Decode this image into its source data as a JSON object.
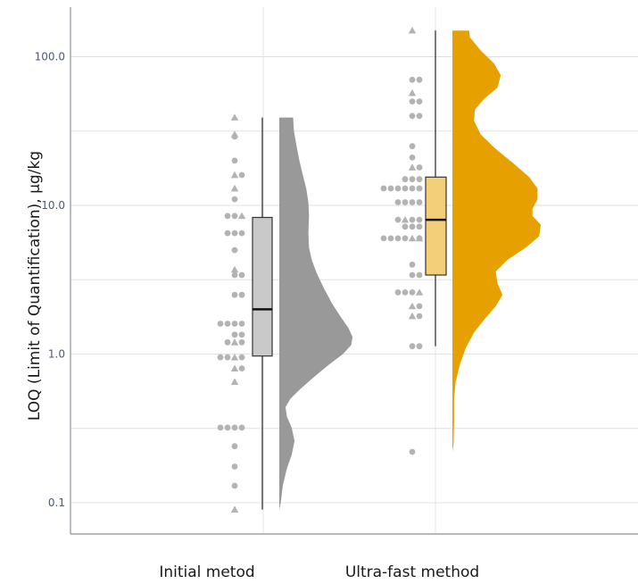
{
  "chart_data": {
    "type": "raincloud",
    "title": "",
    "ylabel": "LOQ (Limit of Quantification), µg/kg",
    "xlabel": "",
    "y_scale": "log10",
    "ylim": [
      0.085,
      230
    ],
    "y_ticks": [
      {
        "value": 0.1,
        "label": "0.1"
      },
      {
        "value": 1,
        "label": "1.0"
      },
      {
        "value": 10,
        "label": "10.0"
      },
      {
        "value": 100,
        "label": "100.0"
      }
    ],
    "grid": true,
    "categories": [
      "Initial metod",
      "Ultra-fast method"
    ],
    "series": [
      {
        "box_color": "#c9c9c9",
        "density_color": "#999999",
        "box": {
          "whisker_low": 0.09,
          "q1": 0.97,
          "median": 2.0,
          "q3": 8.3,
          "whisker_high": 39
        },
        "density_max": 39,
        "density_min": 0.09,
        "density": [
          [
            39,
            1.0
          ],
          [
            32,
            1.05
          ],
          [
            25,
            1.25
          ],
          [
            20,
            1.45
          ],
          [
            16,
            1.7
          ],
          [
            13,
            1.95
          ],
          [
            10.5,
            2.1
          ],
          [
            8.5,
            2.15
          ],
          [
            6.5,
            2.1
          ],
          [
            5.2,
            2.15
          ],
          [
            4.3,
            2.35
          ],
          [
            3.5,
            2.7
          ],
          [
            2.8,
            3.2
          ],
          [
            2.2,
            3.8
          ],
          [
            1.8,
            4.4
          ],
          [
            1.5,
            5.0
          ],
          [
            1.3,
            5.3
          ],
          [
            1.15,
            5.2
          ],
          [
            1.0,
            4.6
          ],
          [
            0.85,
            3.6
          ],
          [
            0.7,
            2.5
          ],
          [
            0.58,
            1.5
          ],
          [
            0.5,
            0.8
          ],
          [
            0.44,
            0.45
          ],
          [
            0.38,
            0.55
          ],
          [
            0.32,
            0.9
          ],
          [
            0.26,
            1.1
          ],
          [
            0.21,
            0.9
          ],
          [
            0.17,
            0.55
          ],
          [
            0.13,
            0.25
          ],
          [
            0.1,
            0.1
          ],
          [
            0.09,
            0.0
          ]
        ],
        "points": [
          {
            "v": 39,
            "s": "t"
          },
          {
            "v": 30,
            "s": "t"
          },
          {
            "v": 29,
            "s": "c"
          },
          {
            "v": 16,
            "s": "c"
          },
          {
            "v": 16,
            "s": "t"
          },
          {
            "v": 20,
            "s": "c"
          },
          {
            "v": 13,
            "s": "t"
          },
          {
            "v": 11,
            "s": "c"
          },
          {
            "v": 8.5,
            "s": "t"
          },
          {
            "v": 8.5,
            "s": "c"
          },
          {
            "v": 8.5,
            "s": "c"
          },
          {
            "v": 6.5,
            "s": "c"
          },
          {
            "v": 6.5,
            "s": "c"
          },
          {
            "v": 6.5,
            "s": "c"
          },
          {
            "v": 5.0,
            "s": "c"
          },
          {
            "v": 3.7,
            "s": "t"
          },
          {
            "v": 3.4,
            "s": "c"
          },
          {
            "v": 3.4,
            "s": "c"
          },
          {
            "v": 2.5,
            "s": "c"
          },
          {
            "v": 2.5,
            "s": "c"
          },
          {
            "v": 1.6,
            "s": "c"
          },
          {
            "v": 1.6,
            "s": "c"
          },
          {
            "v": 1.6,
            "s": "c"
          },
          {
            "v": 1.6,
            "s": "c"
          },
          {
            "v": 1.35,
            "s": "c"
          },
          {
            "v": 1.35,
            "s": "c"
          },
          {
            "v": 1.2,
            "s": "c"
          },
          {
            "v": 1.2,
            "s": "t"
          },
          {
            "v": 1.2,
            "s": "c"
          },
          {
            "v": 0.95,
            "s": "c"
          },
          {
            "v": 0.95,
            "s": "t"
          },
          {
            "v": 0.95,
            "s": "c"
          },
          {
            "v": 0.95,
            "s": "c"
          },
          {
            "v": 0.8,
            "s": "c"
          },
          {
            "v": 0.8,
            "s": "t"
          },
          {
            "v": 0.65,
            "s": "t"
          },
          {
            "v": 0.32,
            "s": "c"
          },
          {
            "v": 0.32,
            "s": "c"
          },
          {
            "v": 0.32,
            "s": "c"
          },
          {
            "v": 0.32,
            "s": "c"
          },
          {
            "v": 0.24,
            "s": "c"
          },
          {
            "v": 0.175,
            "s": "c"
          },
          {
            "v": 0.13,
            "s": "c"
          },
          {
            "v": 0.09,
            "s": "t"
          }
        ]
      },
      {
        "box_color": "#f4cf7a",
        "density_color": "#e6a100",
        "box": {
          "whisker_low": 1.13,
          "q1": 3.4,
          "median": 8.0,
          "q3": 15.5,
          "whisker_high": 150
        },
        "density_max": 150,
        "density_min": 0.22,
        "density": [
          [
            150,
            1.0
          ],
          [
            135,
            1.05
          ],
          [
            110,
            1.7
          ],
          [
            90,
            2.5
          ],
          [
            75,
            2.9
          ],
          [
            62,
            2.7
          ],
          [
            52,
            1.9
          ],
          [
            44,
            1.35
          ],
          [
            37,
            1.3
          ],
          [
            30,
            1.7
          ],
          [
            24,
            2.6
          ],
          [
            19,
            3.7
          ],
          [
            15.5,
            4.6
          ],
          [
            13,
            5.1
          ],
          [
            11,
            5.1
          ],
          [
            9.5,
            4.8
          ],
          [
            8.5,
            4.8
          ],
          [
            7.4,
            5.3
          ],
          [
            6.2,
            5.2
          ],
          [
            5.2,
            4.4
          ],
          [
            4.3,
            3.3
          ],
          [
            3.6,
            2.6
          ],
          [
            3.0,
            2.7
          ],
          [
            2.5,
            3.0
          ],
          [
            2.1,
            2.6
          ],
          [
            1.7,
            1.9
          ],
          [
            1.4,
            1.3
          ],
          [
            1.1,
            0.8
          ],
          [
            0.85,
            0.45
          ],
          [
            0.65,
            0.2
          ],
          [
            0.5,
            0.1
          ],
          [
            0.35,
            0.1
          ],
          [
            0.25,
            0.07
          ],
          [
            0.22,
            0.0
          ]
        ],
        "points": [
          {
            "v": 150,
            "s": "t"
          },
          {
            "v": 70,
            "s": "c"
          },
          {
            "v": 70,
            "s": "c"
          },
          {
            "v": 57,
            "s": "t"
          },
          {
            "v": 50,
            "s": "c"
          },
          {
            "v": 50,
            "s": "c"
          },
          {
            "v": 40,
            "s": "c"
          },
          {
            "v": 40,
            "s": "c"
          },
          {
            "v": 25,
            "s": "c"
          },
          {
            "v": 21,
            "s": "c"
          },
          {
            "v": 18,
            "s": "c"
          },
          {
            "v": 18,
            "s": "t"
          },
          {
            "v": 15,
            "s": "c"
          },
          {
            "v": 15,
            "s": "c"
          },
          {
            "v": 15,
            "s": "c"
          },
          {
            "v": 13,
            "s": "c"
          },
          {
            "v": 13,
            "s": "c"
          },
          {
            "v": 13,
            "s": "c"
          },
          {
            "v": 13,
            "s": "c"
          },
          {
            "v": 13,
            "s": "c"
          },
          {
            "v": 13,
            "s": "c"
          },
          {
            "v": 13,
            "s": "c"
          },
          {
            "v": 10.5,
            "s": "c"
          },
          {
            "v": 10.5,
            "s": "c"
          },
          {
            "v": 10.5,
            "s": "c"
          },
          {
            "v": 10.5,
            "s": "c"
          },
          {
            "v": 8.0,
            "s": "c"
          },
          {
            "v": 8.0,
            "s": "c"
          },
          {
            "v": 8.0,
            "s": "t"
          },
          {
            "v": 8.0,
            "s": "c"
          },
          {
            "v": 7.2,
            "s": "c"
          },
          {
            "v": 7.2,
            "s": "c"
          },
          {
            "v": 7.2,
            "s": "c"
          },
          {
            "v": 6.0,
            "s": "t"
          },
          {
            "v": 6.0,
            "s": "t"
          },
          {
            "v": 6.0,
            "s": "c"
          },
          {
            "v": 6.0,
            "s": "c"
          },
          {
            "v": 6.0,
            "s": "c"
          },
          {
            "v": 6.0,
            "s": "c"
          },
          {
            "v": 6.0,
            "s": "c"
          },
          {
            "v": 4.0,
            "s": "c"
          },
          {
            "v": 3.4,
            "s": "c"
          },
          {
            "v": 3.4,
            "s": "c"
          },
          {
            "v": 2.6,
            "s": "t"
          },
          {
            "v": 2.6,
            "s": "c"
          },
          {
            "v": 2.6,
            "s": "c"
          },
          {
            "v": 2.6,
            "s": "c"
          },
          {
            "v": 2.1,
            "s": "c"
          },
          {
            "v": 2.1,
            "s": "t"
          },
          {
            "v": 1.8,
            "s": "c"
          },
          {
            "v": 1.8,
            "s": "t"
          },
          {
            "v": 1.13,
            "s": "c"
          },
          {
            "v": 1.13,
            "s": "c"
          },
          {
            "v": 0.22,
            "s": "c"
          }
        ]
      }
    ]
  }
}
